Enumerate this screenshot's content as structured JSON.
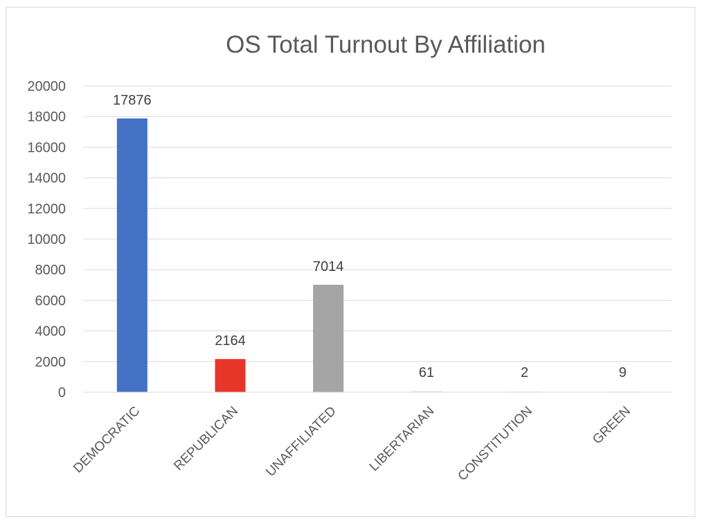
{
  "chart_data": {
    "type": "bar",
    "title": "OS Total Turnout By Affiliation",
    "xlabel": "",
    "ylabel": "",
    "categories": [
      "DEMOCRATIC",
      "REPUBLICAN",
      "UNAFFILIATED",
      "LIBERTARIAN",
      "CONSTITUTION",
      "GREEN"
    ],
    "values": [
      17876,
      2164,
      7014,
      61,
      2,
      9
    ],
    "data_labels": [
      "17876",
      "2164",
      "7014",
      "61",
      "2",
      "9"
    ],
    "bar_colors": [
      "#4472c4",
      "#e8352a",
      "#a5a5a5",
      "#d9d9d9",
      "#d9d9d9",
      "#d9d9d9"
    ],
    "ylim": [
      0,
      20000
    ],
    "yticks": [
      "0",
      "2000",
      "4000",
      "6000",
      "8000",
      "10000",
      "12000",
      "14000",
      "16000",
      "18000",
      "20000"
    ],
    "grid": true,
    "legend": "none"
  }
}
